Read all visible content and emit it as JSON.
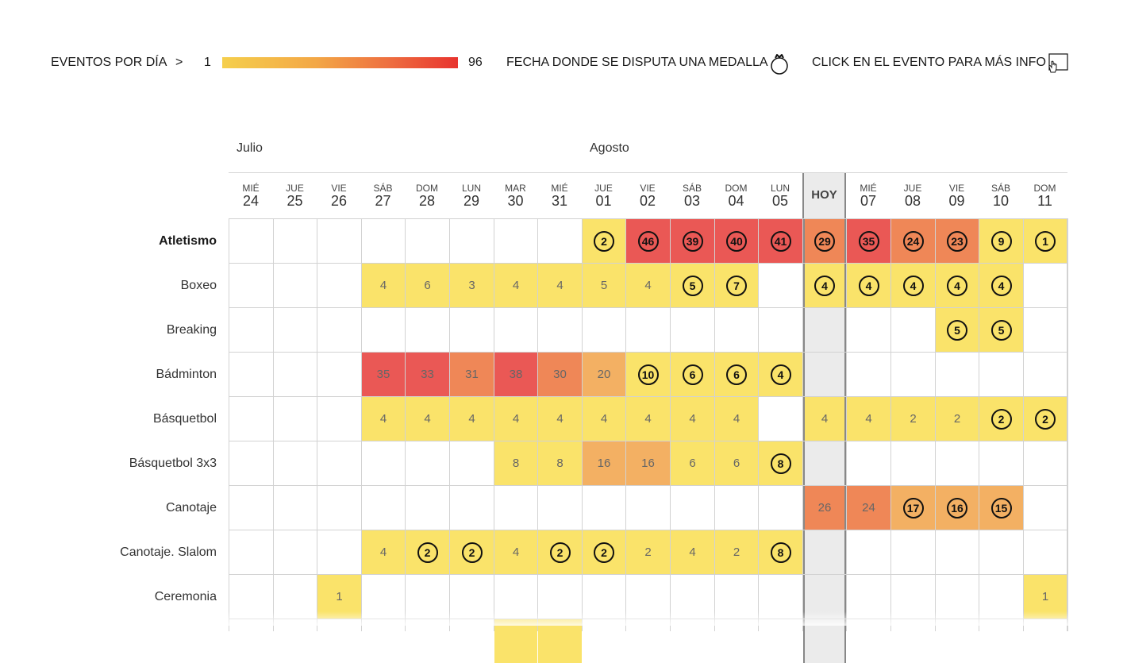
{
  "legend": {
    "events_label": "EVENTOS POR DÍA",
    "arrow": ">",
    "min": "1",
    "max": "96",
    "medal_label": "FECHA DONDE SE DISPUTA UNA MEDALLA",
    "medal_icon": "medal-icon",
    "click_label": "CLICK EN EL EVENTO PARA MÁS INFO",
    "click_icon": "click-hand-icon",
    "gradient_colors": [
      "#f5cf4c",
      "#f3a746",
      "#ee7040",
      "#e8332e"
    ]
  },
  "months": [
    {
      "label": "Julio",
      "start_col": 0
    },
    {
      "label": "Agosto",
      "start_col": 8
    }
  ],
  "today_label": "HOY",
  "today_index": 13,
  "days": [
    {
      "dow": "MIÉ",
      "num": "24"
    },
    {
      "dow": "JUE",
      "num": "25"
    },
    {
      "dow": "VIE",
      "num": "26"
    },
    {
      "dow": "SÁB",
      "num": "27"
    },
    {
      "dow": "DOM",
      "num": "28"
    },
    {
      "dow": "LUN",
      "num": "29"
    },
    {
      "dow": "MAR",
      "num": "30"
    },
    {
      "dow": "MIÉ",
      "num": "31"
    },
    {
      "dow": "JUE",
      "num": "01"
    },
    {
      "dow": "VIE",
      "num": "02"
    },
    {
      "dow": "SÁB",
      "num": "03"
    },
    {
      "dow": "DOM",
      "num": "04"
    },
    {
      "dow": "LUN",
      "num": "05"
    },
    {
      "dow": "",
      "num": ""
    },
    {
      "dow": "MIÉ",
      "num": "07"
    },
    {
      "dow": "JUE",
      "num": "08"
    },
    {
      "dow": "VIE",
      "num": "09"
    },
    {
      "dow": "SÁB",
      "num": "10"
    },
    {
      "dow": "DOM",
      "num": "11"
    }
  ],
  "colors": {
    "empty": "#ffffff",
    "today_empty": "#ebebeb",
    "level1": "#fae36a",
    "level2": "#f3b063",
    "level3": "#ef8757",
    "level4": "#ea5855"
  },
  "sports": [
    {
      "name": "Atletismo",
      "bold": true,
      "cells": [
        null,
        null,
        null,
        null,
        null,
        null,
        null,
        null,
        {
          "v": "2",
          "m": true
        },
        {
          "v": "46",
          "m": true
        },
        {
          "v": "39",
          "m": true
        },
        {
          "v": "40",
          "m": true
        },
        {
          "v": "41",
          "m": true
        },
        {
          "v": "29",
          "m": true
        },
        {
          "v": "35",
          "m": true
        },
        {
          "v": "24",
          "m": true
        },
        {
          "v": "23",
          "m": true
        },
        {
          "v": "9",
          "m": true
        },
        {
          "v": "1",
          "m": true
        }
      ]
    },
    {
      "name": "Boxeo",
      "bold": false,
      "cells": [
        null,
        null,
        null,
        {
          "v": "4"
        },
        {
          "v": "6"
        },
        {
          "v": "3"
        },
        {
          "v": "4"
        },
        {
          "v": "4"
        },
        {
          "v": "5"
        },
        {
          "v": "4"
        },
        {
          "v": "5",
          "m": true
        },
        {
          "v": "7",
          "m": true
        },
        null,
        {
          "v": "4",
          "m": true
        },
        {
          "v": "4",
          "m": true
        },
        {
          "v": "4",
          "m": true
        },
        {
          "v": "4",
          "m": true
        },
        {
          "v": "4",
          "m": true
        },
        null
      ]
    },
    {
      "name": "Breaking",
      "bold": false,
      "cells": [
        null,
        null,
        null,
        null,
        null,
        null,
        null,
        null,
        null,
        null,
        null,
        null,
        null,
        null,
        null,
        null,
        {
          "v": "5",
          "m": true
        },
        {
          "v": "5",
          "m": true
        },
        null
      ]
    },
    {
      "name": "Bádminton",
      "bold": false,
      "cells": [
        null,
        null,
        null,
        {
          "v": "35"
        },
        {
          "v": "33"
        },
        {
          "v": "31"
        },
        {
          "v": "38"
        },
        {
          "v": "30"
        },
        {
          "v": "20"
        },
        {
          "v": "10",
          "m": true
        },
        {
          "v": "6",
          "m": true
        },
        {
          "v": "6",
          "m": true
        },
        {
          "v": "4",
          "m": true
        },
        null,
        null,
        null,
        null,
        null,
        null
      ]
    },
    {
      "name": "Básquetbol",
      "bold": false,
      "cells": [
        null,
        null,
        null,
        {
          "v": "4"
        },
        {
          "v": "4"
        },
        {
          "v": "4"
        },
        {
          "v": "4"
        },
        {
          "v": "4"
        },
        {
          "v": "4"
        },
        {
          "v": "4"
        },
        {
          "v": "4"
        },
        {
          "v": "4"
        },
        null,
        {
          "v": "4"
        },
        {
          "v": "4"
        },
        {
          "v": "2"
        },
        {
          "v": "2"
        },
        {
          "v": "2",
          "m": true
        },
        {
          "v": "2",
          "m": true
        }
      ]
    },
    {
      "name": "Básquetbol 3x3",
      "bold": false,
      "cells": [
        null,
        null,
        null,
        null,
        null,
        null,
        {
          "v": "8"
        },
        {
          "v": "8"
        },
        {
          "v": "16"
        },
        {
          "v": "16"
        },
        {
          "v": "6"
        },
        {
          "v": "6"
        },
        {
          "v": "8",
          "m": true
        },
        null,
        null,
        null,
        null,
        null,
        null
      ]
    },
    {
      "name": "Canotaje",
      "bold": false,
      "cells": [
        null,
        null,
        null,
        null,
        null,
        null,
        null,
        null,
        null,
        null,
        null,
        null,
        null,
        {
          "v": "26"
        },
        {
          "v": "24"
        },
        {
          "v": "17",
          "m": true
        },
        {
          "v": "16",
          "m": true
        },
        {
          "v": "15",
          "m": true
        },
        null
      ]
    },
    {
      "name": "Canotaje. Slalom",
      "bold": false,
      "cells": [
        null,
        null,
        null,
        {
          "v": "4"
        },
        {
          "v": "2",
          "m": true
        },
        {
          "v": "2",
          "m": true
        },
        {
          "v": "4"
        },
        {
          "v": "2",
          "m": true
        },
        {
          "v": "2",
          "m": true
        },
        {
          "v": "2"
        },
        {
          "v": "4"
        },
        {
          "v": "2"
        },
        {
          "v": "8",
          "m": true
        },
        null,
        null,
        null,
        null,
        null,
        null
      ]
    },
    {
      "name": "Ceremonia",
      "bold": false,
      "cells": [
        null,
        null,
        {
          "v": "1"
        },
        null,
        null,
        null,
        null,
        null,
        null,
        null,
        null,
        null,
        null,
        null,
        null,
        null,
        null,
        null,
        {
          "v": "1"
        }
      ]
    },
    {
      "name": "",
      "bold": false,
      "cells": [
        null,
        null,
        null,
        null,
        null,
        null,
        {
          "v": ""
        },
        {
          "v": ""
        },
        null,
        null,
        null,
        null,
        null,
        null,
        null,
        null,
        null,
        null,
        null
      ]
    }
  ]
}
